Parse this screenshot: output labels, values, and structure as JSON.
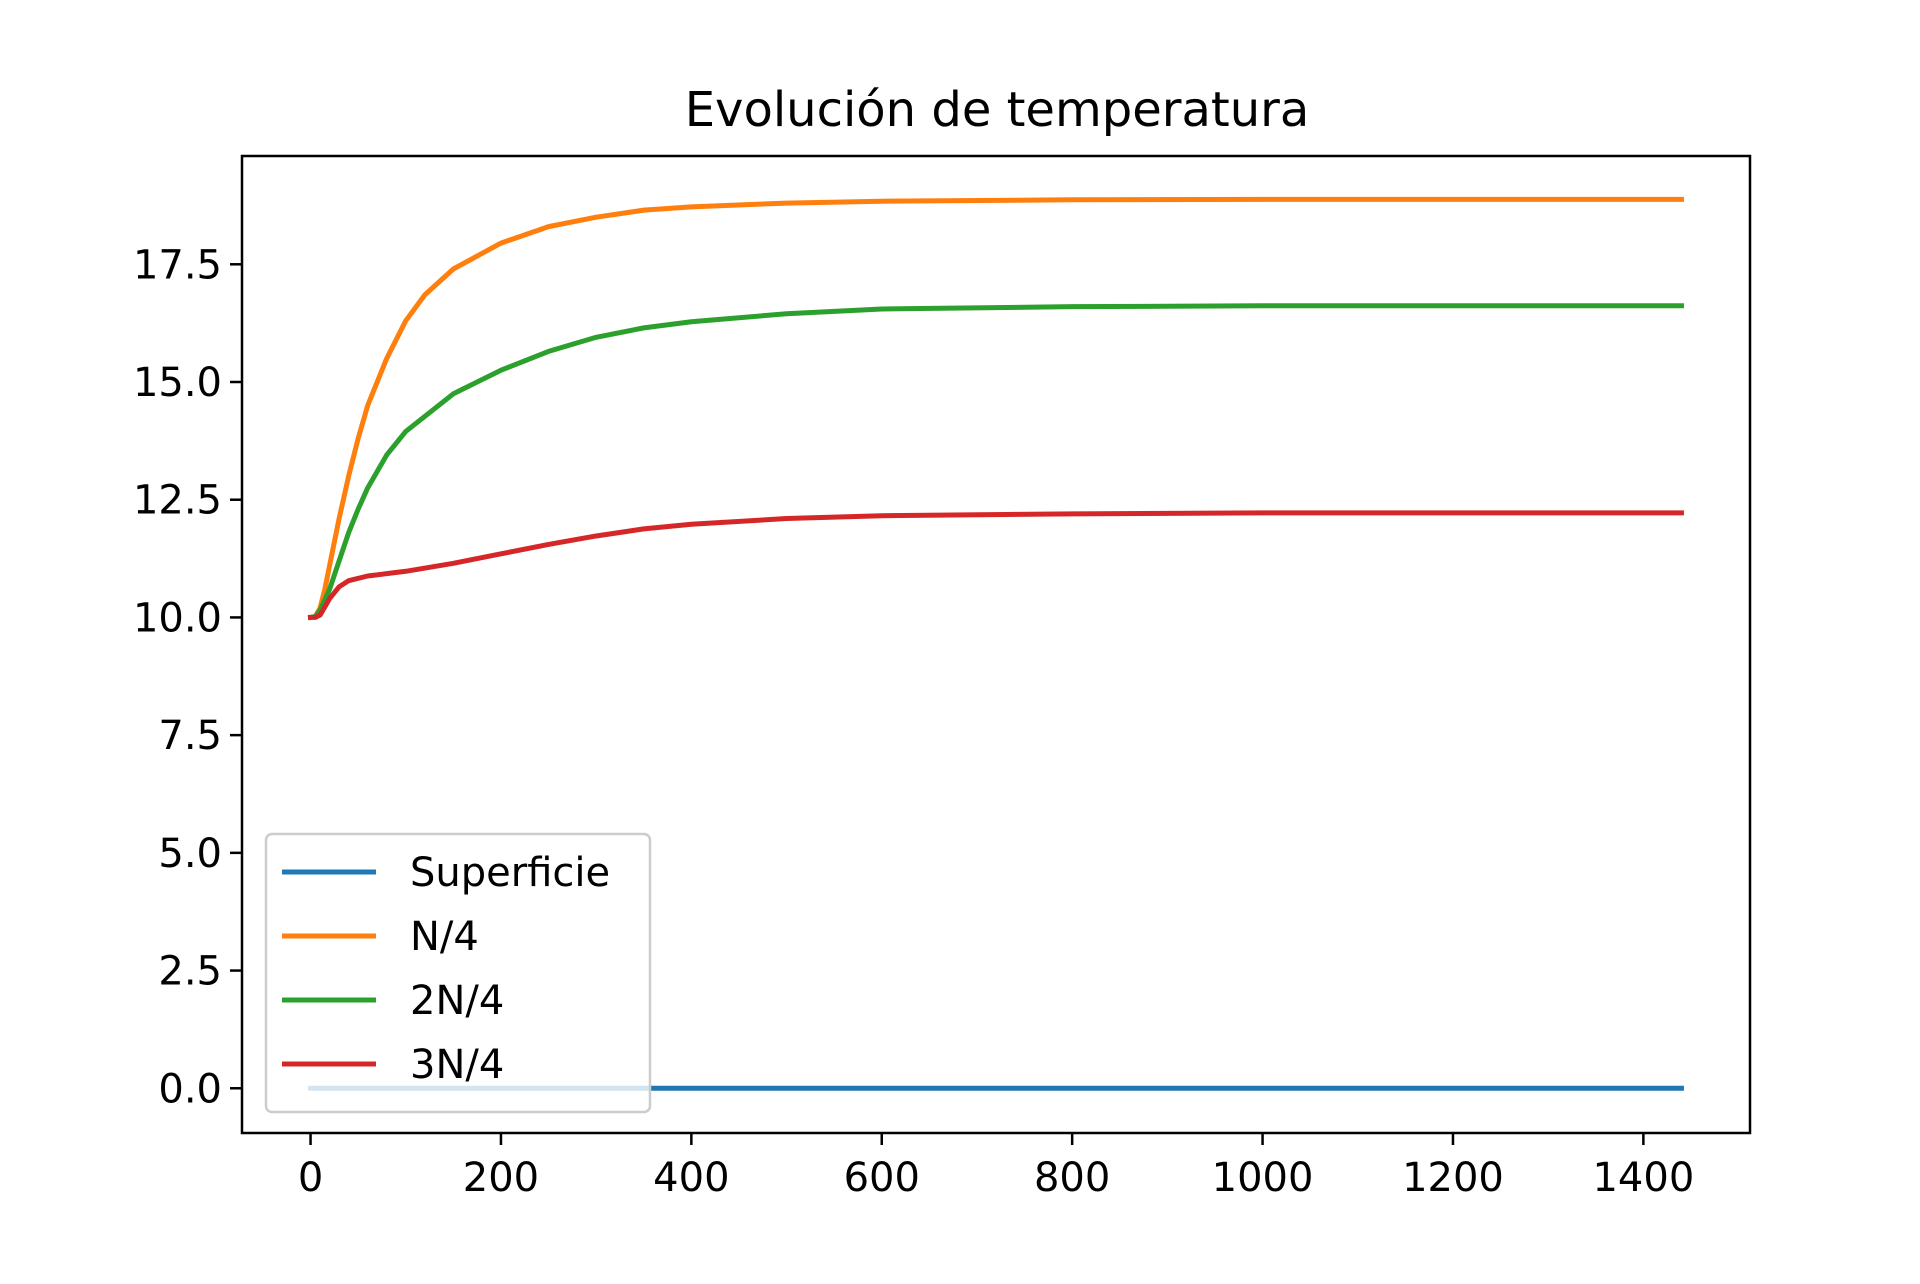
{
  "chart_data": {
    "type": "line",
    "title": "Evolución de temperatura",
    "xlabel": "",
    "ylabel": "",
    "xlim": [
      -72,
      1512
    ],
    "ylim": [
      -0.95,
      19.8
    ],
    "x_ticks": [
      0,
      200,
      400,
      600,
      800,
      1000,
      1200,
      1400
    ],
    "x_tick_labels": [
      "0",
      "200",
      "400",
      "600",
      "800",
      "1000",
      "1200",
      "1400"
    ],
    "y_ticks": [
      0.0,
      2.5,
      5.0,
      7.5,
      10.0,
      12.5,
      15.0,
      17.5
    ],
    "y_tick_labels": [
      "0.0",
      "2.5",
      "5.0",
      "7.5",
      "10.0",
      "12.5",
      "15.0",
      "17.5"
    ],
    "grid": false,
    "legend_position": "lower-left",
    "series": [
      {
        "name": "Superficie",
        "color": "#1f77b4",
        "points": [
          [
            0,
            0.0
          ],
          [
            1440,
            0.0
          ]
        ]
      },
      {
        "name": "N/4",
        "color": "#ff7f0e",
        "points": [
          [
            0,
            10.0
          ],
          [
            5,
            10.02
          ],
          [
            10,
            10.2
          ],
          [
            15,
            10.6
          ],
          [
            20,
            11.1
          ],
          [
            30,
            12.1
          ],
          [
            40,
            13.0
          ],
          [
            50,
            13.8
          ],
          [
            60,
            14.5
          ],
          [
            80,
            15.5
          ],
          [
            100,
            16.3
          ],
          [
            120,
            16.85
          ],
          [
            150,
            17.4
          ],
          [
            200,
            17.95
          ],
          [
            250,
            18.3
          ],
          [
            300,
            18.5
          ],
          [
            350,
            18.65
          ],
          [
            400,
            18.72
          ],
          [
            500,
            18.8
          ],
          [
            600,
            18.84
          ],
          [
            800,
            18.87
          ],
          [
            1000,
            18.88
          ],
          [
            1200,
            18.88
          ],
          [
            1440,
            18.88
          ]
        ]
      },
      {
        "name": "2N/4",
        "color": "#2ca02c",
        "points": [
          [
            0,
            10.0
          ],
          [
            5,
            10.02
          ],
          [
            10,
            10.15
          ],
          [
            20,
            10.6
          ],
          [
            30,
            11.2
          ],
          [
            40,
            11.8
          ],
          [
            50,
            12.3
          ],
          [
            60,
            12.75
          ],
          [
            80,
            13.45
          ],
          [
            100,
            13.95
          ],
          [
            150,
            14.75
          ],
          [
            200,
            15.25
          ],
          [
            250,
            15.65
          ],
          [
            300,
            15.95
          ],
          [
            350,
            16.15
          ],
          [
            400,
            16.28
          ],
          [
            500,
            16.45
          ],
          [
            600,
            16.55
          ],
          [
            800,
            16.6
          ],
          [
            1000,
            16.62
          ],
          [
            1200,
            16.62
          ],
          [
            1440,
            16.62
          ]
        ]
      },
      {
        "name": "3N/4",
        "color": "#d62728",
        "points": [
          [
            0,
            10.0
          ],
          [
            5,
            10.0
          ],
          [
            10,
            10.05
          ],
          [
            20,
            10.4
          ],
          [
            30,
            10.65
          ],
          [
            40,
            10.78
          ],
          [
            60,
            10.88
          ],
          [
            80,
            10.93
          ],
          [
            100,
            10.98
          ],
          [
            150,
            11.15
          ],
          [
            200,
            11.35
          ],
          [
            250,
            11.55
          ],
          [
            300,
            11.73
          ],
          [
            350,
            11.88
          ],
          [
            400,
            11.98
          ],
          [
            500,
            12.1
          ],
          [
            600,
            12.16
          ],
          [
            800,
            12.2
          ],
          [
            1000,
            12.22
          ],
          [
            1200,
            12.22
          ],
          [
            1440,
            12.22
          ]
        ]
      }
    ]
  }
}
